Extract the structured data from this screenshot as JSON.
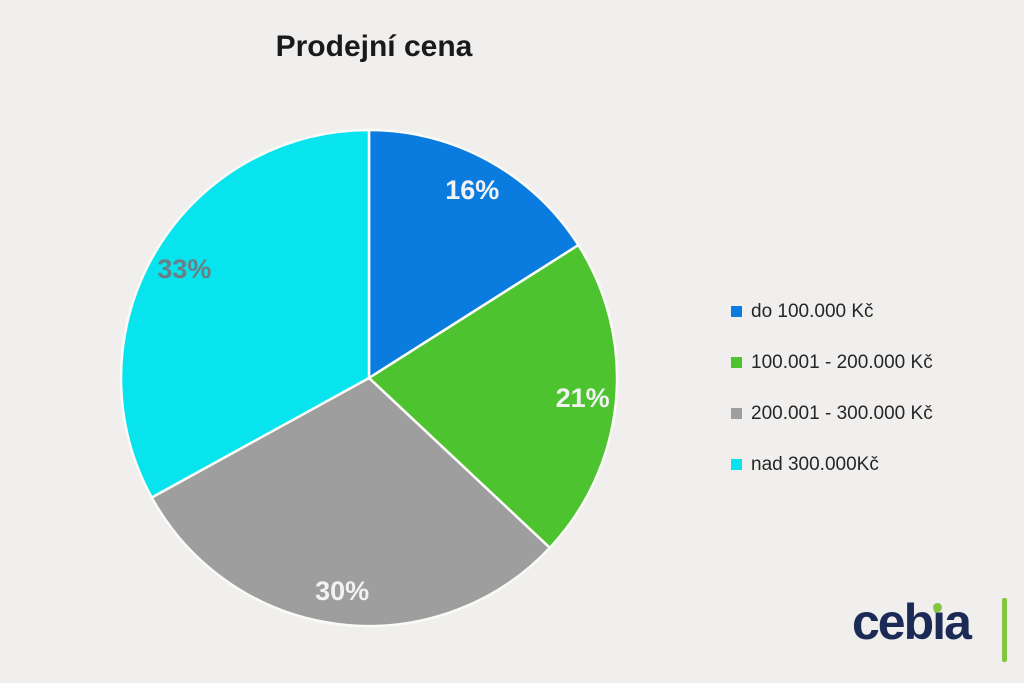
{
  "page": {
    "background": "#f0efee",
    "title_color": "#1a1a1a"
  },
  "chart_data": {
    "type": "pie",
    "title": "Prodejní cena",
    "categories": [
      "do 100.000 Kč",
      "100.001 - 200.000 Kč",
      "200.001 - 300.000 Kč",
      "nad 300.000Kč"
    ],
    "values": [
      16,
      21,
      30,
      33
    ],
    "data_labels": [
      "16%",
      "21%",
      "30%",
      "33%"
    ],
    "colors": [
      "#0a7ce0",
      "#4cc32f",
      "#9e9e9e",
      "#08e4ee"
    ],
    "data_label_colors": [
      "#f2f2f2",
      "#f2f2f2",
      "#f2f2f2",
      "#6b7e88"
    ],
    "separator_color": "#fafaf7",
    "start_angle": "top",
    "direction": "clockwise",
    "legend_position": "right"
  },
  "logo": {
    "text": "cebia",
    "pre": "ceb",
    "i": "ı",
    "post": "a",
    "navy": "#1b2b55",
    "green": "#83c441"
  }
}
